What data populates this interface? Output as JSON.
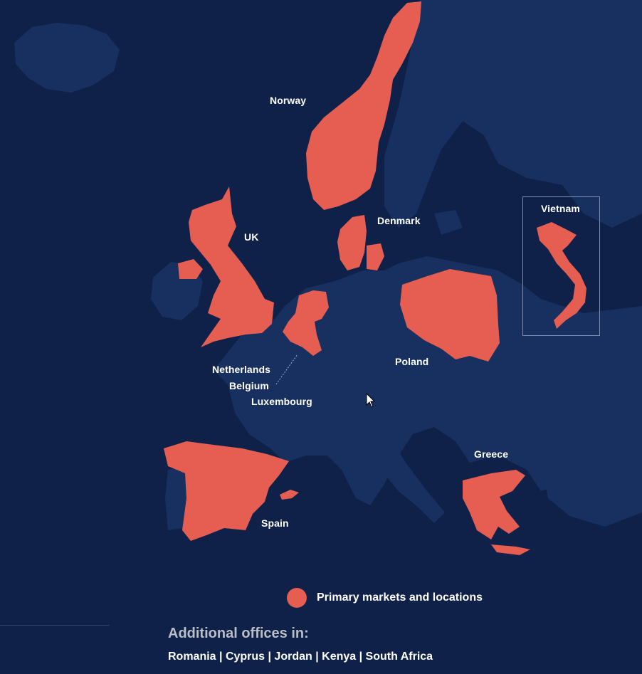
{
  "map": {
    "labels": {
      "norway": "Norway",
      "uk": "UK",
      "denmark": "Denmark",
      "vietnam": "Vietnam",
      "netherlands": "Netherlands",
      "belgium": "Belgium",
      "luxembourg": "Luxembourg",
      "poland": "Poland",
      "greece": "Greece",
      "spain": "Spain"
    },
    "highlighted_countries": [
      "Norway",
      "UK",
      "Denmark",
      "Netherlands",
      "Belgium",
      "Luxembourg",
      "Poland",
      "Spain",
      "Greece",
      "Vietnam"
    ]
  },
  "legend": {
    "label": "Primary markets and locations",
    "color": "#e55e51"
  },
  "offices": {
    "title": "Additional offices in:",
    "list": "Romania | Cyprus | Jordan | Kenya | South Africa"
  },
  "colors": {
    "background": "#0f2149",
    "land": "#17305f",
    "highlight": "#e55e51"
  }
}
